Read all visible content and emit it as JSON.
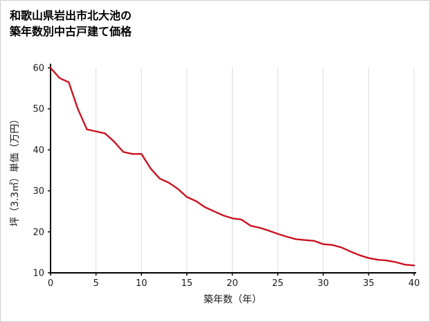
{
  "chart_data": {
    "type": "line",
    "title": "和歌山県岩出市北大池の築年数別中古戸建て価格",
    "title_lines": [
      "和歌山県岩出市北大池の",
      "築年数別中古戸建て価格"
    ],
    "xlabel": "築年数（年）",
    "ylabel": "坪（3.3㎡）単価（万円）",
    "xlim": [
      0,
      40
    ],
    "ylim": [
      10,
      60
    ],
    "xticks": [
      0,
      5,
      10,
      15,
      20,
      25,
      30,
      35,
      40
    ],
    "yticks": [
      10,
      20,
      30,
      40,
      50,
      60
    ],
    "grid": "vertical",
    "legend": "none",
    "line_color": "#cc1120",
    "grid_color": "#dcdcdc",
    "axis_color": "#000000",
    "text_color": "#1a1a1a",
    "x": [
      0,
      1,
      2,
      3,
      4,
      5,
      6,
      7,
      8,
      9,
      10,
      11,
      12,
      13,
      14,
      15,
      16,
      17,
      18,
      19,
      20,
      21,
      22,
      23,
      24,
      25,
      26,
      27,
      28,
      29,
      30,
      31,
      32,
      33,
      34,
      35,
      36,
      37,
      38,
      39,
      40
    ],
    "y": [
      60,
      57.5,
      56.5,
      50,
      45,
      44.5,
      44,
      42,
      39.5,
      39,
      39,
      35.5,
      33,
      32,
      30.5,
      28.5,
      27.5,
      26,
      25,
      24,
      23.3,
      23,
      21.5,
      21,
      20.3,
      19.5,
      18.8,
      18.2,
      18,
      17.8,
      17,
      16.8,
      16.2,
      15.2,
      14.3,
      13.6,
      13.2,
      13,
      12.6,
      12,
      11.8
    ]
  }
}
